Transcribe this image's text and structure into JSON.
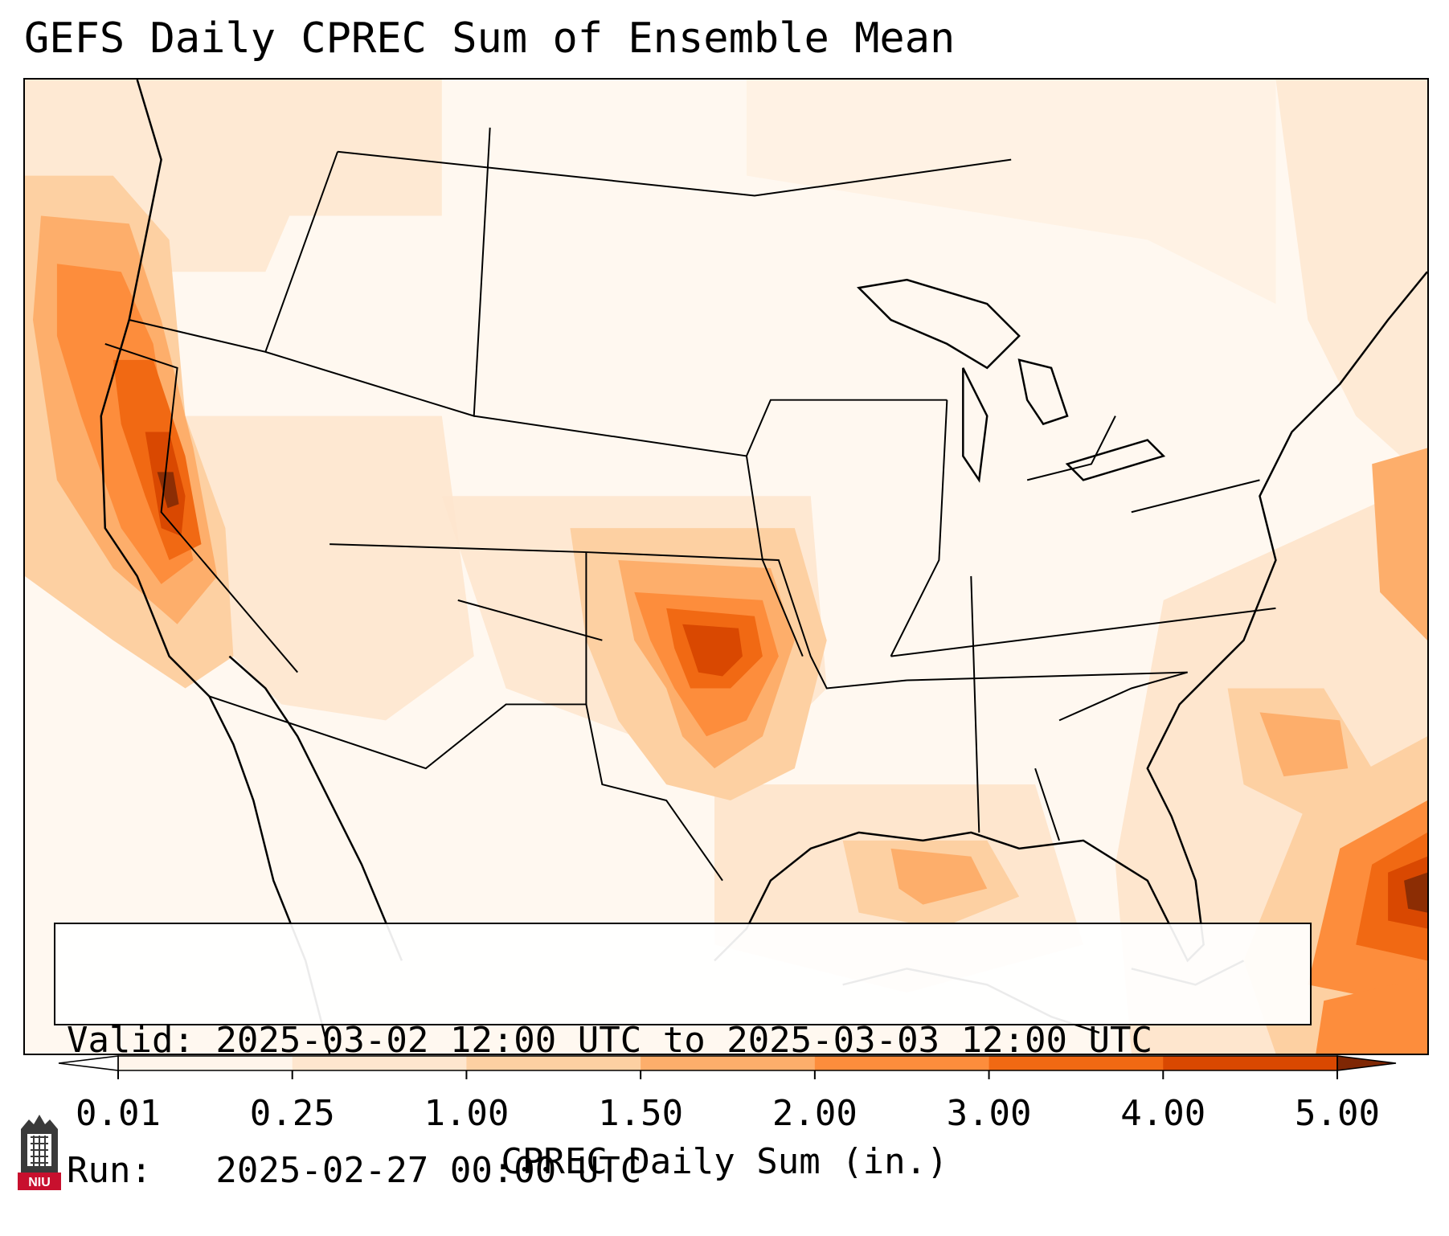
{
  "title": "GEFS Daily CPREC Sum of Ensemble Mean",
  "info": {
    "valid_line": "Valid: 2025-03-02 12:00 UTC to 2025-03-03 12:00 UTC",
    "run_line": "Run:   2025-02-27 00:00 UTC"
  },
  "colorbar": {
    "label": "CPREC Daily Sum (in.)",
    "ticks": [
      "0.01",
      "0.25",
      "1.00",
      "1.50",
      "2.00",
      "3.00",
      "4.00",
      "5.00"
    ],
    "colors": [
      "#fff5eb",
      "#fee6ce",
      "#fdd0a2",
      "#fdae6b",
      "#fd8d3c",
      "#f16913",
      "#d94801",
      "#8c2d04"
    ],
    "under_color": "#ffffff",
    "over_color": "#7f2704"
  },
  "logo": {
    "text": "NIU",
    "icon": "university-tower-icon"
  },
  "map": {
    "region": "Contiguous United States",
    "field": "CPREC daily sum",
    "maxima": [
      {
        "area": "Northern California Sierra",
        "value_in": 4.5
      },
      {
        "area": "Western Atlantic east of Bahamas",
        "value_in": 4.5
      },
      {
        "area": "Central Oklahoma",
        "value_in": 3.2
      },
      {
        "area": "Northwestern Gulf of Mexico",
        "value_in": 1.5
      }
    ]
  }
}
